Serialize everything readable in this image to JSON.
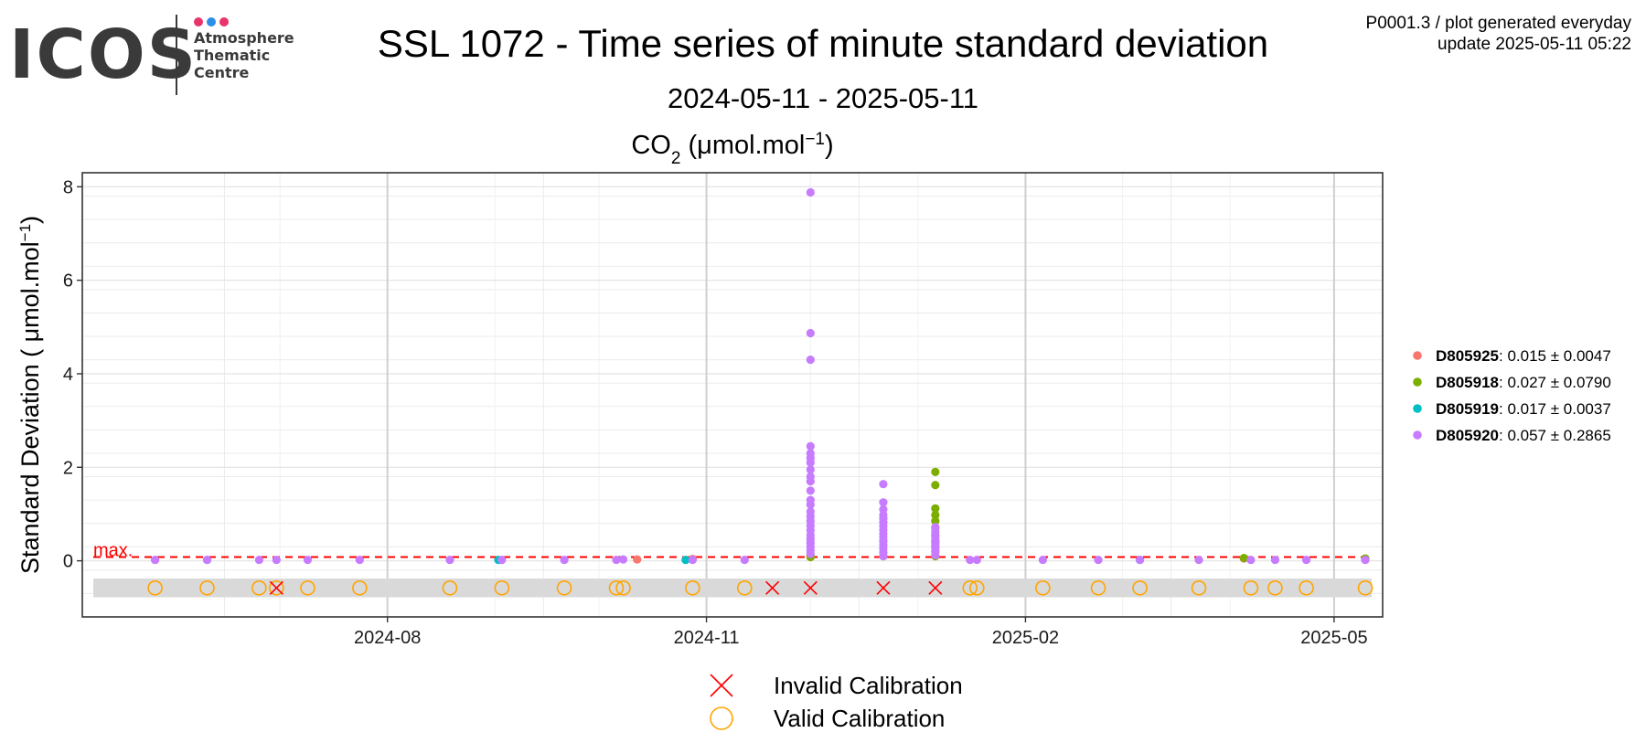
{
  "header": {
    "logo_word": "ICOS",
    "logo_lines": [
      "Atmosphere",
      "Thematic",
      "Centre"
    ],
    "logo_dot_colors": [
      "#e8336b",
      "#2e8de6",
      "#e8336b"
    ],
    "title": "SSL 1072 - Time series of minute standard deviation",
    "date_range": "2024-05-11 - 2025-05-11",
    "plot_id": "P0001.3 / plot generated everyday",
    "update": "update  2025-05-11 05:22"
  },
  "chart_data": {
    "type": "scatter",
    "panel_title": "CO2 (μmol.mol−1)",
    "panel_title_parts": {
      "base": "CO",
      "sub": "2",
      "unit_pre": " (μmol.mol",
      "sup": "−1",
      "unit_post": ")"
    },
    "ylabel": "Standard Deviation ( μmol.mol−1)",
    "ylabel_parts": {
      "pre": "Standard Deviation ( μmol.mol",
      "sup": "−1",
      "post": ")"
    },
    "xlabel": "",
    "xlim": [
      "2024-05-05",
      "2025-05-15"
    ],
    "ylim": [
      -1.2,
      8.3
    ],
    "x_ticks": [
      {
        "date": "2024-08-01",
        "label": "2024-08"
      },
      {
        "date": "2024-11-01",
        "label": "2024-11"
      },
      {
        "date": "2025-02-01",
        "label": "2025-02"
      },
      {
        "date": "2025-05-01",
        "label": "2025-05"
      }
    ],
    "y_ticks": [
      0,
      2,
      4,
      6,
      8
    ],
    "grid": true,
    "max_line": {
      "value": 0.08,
      "label": "max.",
      "color": "#ff0000"
    },
    "calibration_band": [
      -0.78,
      -0.38
    ],
    "calibration_y": -0.58,
    "series": [
      {
        "name": "D805925",
        "stat": ": 0.015 ± 0.0047",
        "color": "#f8766d",
        "points": [
          [
            "2024-05-26",
            0.02
          ],
          [
            "2024-10-12",
            0.03
          ],
          [
            "2024-10-28",
            0.04
          ],
          [
            "2025-04-05",
            0.05
          ],
          [
            "2025-05-10",
            0.03
          ]
        ]
      },
      {
        "name": "D805918",
        "stat": ": 0.027 ± 0.0790",
        "color": "#7cae00",
        "points": [
          [
            "2024-12-01",
            0.08
          ],
          [
            "2024-12-01",
            0.12
          ],
          [
            "2024-12-22",
            0.1
          ],
          [
            "2025-01-06",
            0.1
          ],
          [
            "2025-01-06",
            0.2
          ],
          [
            "2025-01-06",
            0.3
          ],
          [
            "2025-01-06",
            0.4
          ],
          [
            "2025-01-06",
            0.55
          ],
          [
            "2025-01-06",
            0.7
          ],
          [
            "2025-01-06",
            0.85
          ],
          [
            "2025-01-06",
            0.98
          ],
          [
            "2025-01-06",
            1.12
          ],
          [
            "2025-01-06",
            1.62
          ],
          [
            "2025-01-06",
            1.9
          ],
          [
            "2025-04-05",
            0.06
          ],
          [
            "2025-05-10",
            0.05
          ]
        ]
      },
      {
        "name": "D805919",
        "stat": ": 0.017 ± 0.0037",
        "color": "#00bfc4",
        "points": [
          [
            "2024-06-10",
            0.02
          ],
          [
            "2024-09-02",
            0.02
          ],
          [
            "2024-10-26",
            0.02
          ],
          [
            "2025-03-06",
            0.02
          ]
        ]
      },
      {
        "name": "D805920",
        "stat": ": 0.057 ± 0.2865",
        "color": "#c77cff",
        "points": [
          [
            "2024-05-26",
            0.02
          ],
          [
            "2024-06-10",
            0.02
          ],
          [
            "2024-06-25",
            0.02
          ],
          [
            "2024-06-30",
            0.02
          ],
          [
            "2024-07-09",
            0.02
          ],
          [
            "2024-07-24",
            0.02
          ],
          [
            "2024-08-19",
            0.02
          ],
          [
            "2024-09-03",
            0.02
          ],
          [
            "2024-09-21",
            0.02
          ],
          [
            "2024-10-06",
            0.02
          ],
          [
            "2024-10-08",
            0.03
          ],
          [
            "2024-10-28",
            0.02
          ],
          [
            "2024-11-12",
            0.02
          ],
          [
            "2024-12-01",
            0.15
          ],
          [
            "2024-12-01",
            0.22
          ],
          [
            "2024-12-01",
            0.3
          ],
          [
            "2024-12-01",
            0.38
          ],
          [
            "2024-12-01",
            0.46
          ],
          [
            "2024-12-01",
            0.55
          ],
          [
            "2024-12-01",
            0.65
          ],
          [
            "2024-12-01",
            0.75
          ],
          [
            "2024-12-01",
            0.85
          ],
          [
            "2024-12-01",
            0.95
          ],
          [
            "2024-12-01",
            1.05
          ],
          [
            "2024-12-01",
            1.2
          ],
          [
            "2024-12-01",
            1.3
          ],
          [
            "2024-12-01",
            1.5
          ],
          [
            "2024-12-01",
            1.7
          ],
          [
            "2024-12-01",
            1.8
          ],
          [
            "2024-12-01",
            1.95
          ],
          [
            "2024-12-01",
            2.1
          ],
          [
            "2024-12-01",
            2.2
          ],
          [
            "2024-12-01",
            2.3
          ],
          [
            "2024-12-01",
            2.45
          ],
          [
            "2024-12-01",
            4.3
          ],
          [
            "2024-12-01",
            4.87
          ],
          [
            "2024-12-01",
            7.88
          ],
          [
            "2024-12-22",
            0.1
          ],
          [
            "2024-12-22",
            0.18
          ],
          [
            "2024-12-22",
            0.26
          ],
          [
            "2024-12-22",
            0.34
          ],
          [
            "2024-12-22",
            0.42
          ],
          [
            "2024-12-22",
            0.5
          ],
          [
            "2024-12-22",
            0.58
          ],
          [
            "2024-12-22",
            0.66
          ],
          [
            "2024-12-22",
            0.74
          ],
          [
            "2024-12-22",
            0.82
          ],
          [
            "2024-12-22",
            0.9
          ],
          [
            "2024-12-22",
            0.98
          ],
          [
            "2024-12-22",
            1.1
          ],
          [
            "2024-12-22",
            1.25
          ],
          [
            "2024-12-22",
            1.64
          ],
          [
            "2025-01-06",
            0.12
          ],
          [
            "2025-01-06",
            0.2
          ],
          [
            "2025-01-06",
            0.28
          ],
          [
            "2025-01-06",
            0.36
          ],
          [
            "2025-01-06",
            0.44
          ],
          [
            "2025-01-06",
            0.52
          ],
          [
            "2025-01-06",
            0.62
          ],
          [
            "2025-01-06",
            0.72
          ],
          [
            "2025-01-16",
            0.02
          ],
          [
            "2025-01-18",
            0.02
          ],
          [
            "2025-02-06",
            0.02
          ],
          [
            "2025-02-22",
            0.02
          ],
          [
            "2025-03-06",
            0.02
          ],
          [
            "2025-03-23",
            0.02
          ],
          [
            "2025-04-07",
            0.02
          ],
          [
            "2025-04-14",
            0.02
          ],
          [
            "2025-04-23",
            0.02
          ],
          [
            "2025-05-10",
            0.02
          ]
        ]
      }
    ],
    "calibrations": {
      "invalid": {
        "label": "Invalid Calibration",
        "color": "#ff0000",
        "dates": [
          "2024-06-30",
          "2024-11-20",
          "2024-12-01",
          "2024-12-22",
          "2025-01-06"
        ]
      },
      "valid": {
        "label": "Valid Calibration",
        "color": "#ffa500",
        "dates": [
          "2024-05-26",
          "2024-06-10",
          "2024-06-25",
          "2024-06-30",
          "2024-07-09",
          "2024-07-24",
          "2024-08-19",
          "2024-09-03",
          "2024-09-21",
          "2024-10-06",
          "2024-10-08",
          "2024-10-28",
          "2024-11-12",
          "2025-01-16",
          "2025-01-18",
          "2025-02-06",
          "2025-02-22",
          "2025-03-06",
          "2025-03-23",
          "2025-04-07",
          "2025-04-14",
          "2025-04-23",
          "2025-05-10"
        ]
      }
    }
  }
}
